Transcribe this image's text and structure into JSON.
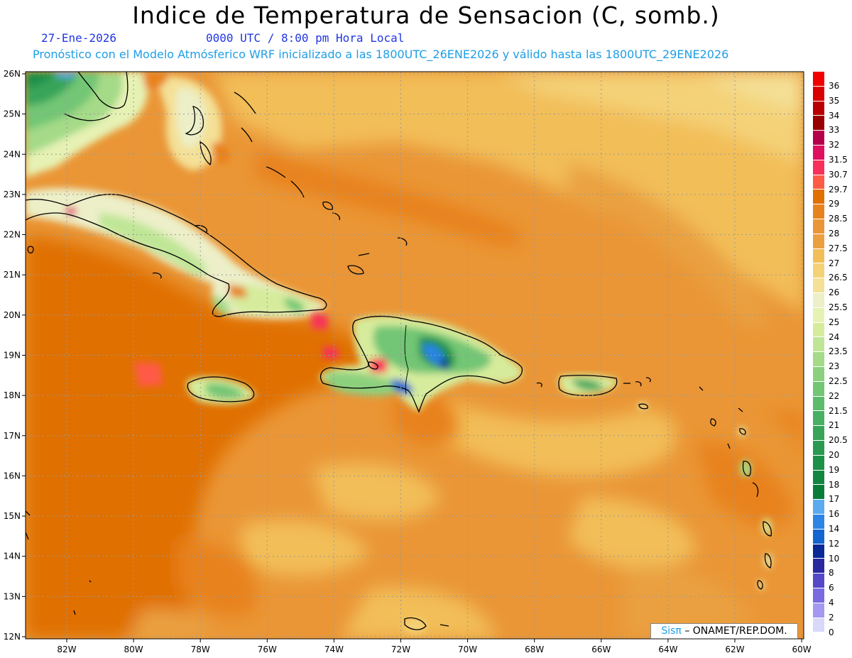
{
  "title": "Indice de Temperatura de Sensacion (C, somb.)",
  "date_line": "27-Ene-2026",
  "time_line": "0000 UTC / 8:00 pm Hora Local",
  "model_line": "Pronóstico con el Modelo Atmósferico WRF inicializado a las 1800UTC_26ENE2026 y válido hasta las  1800UTC_29ENE2026",
  "credit": {
    "sis": "Sisπ",
    "rest": "– ONAMET/REP.DOM."
  },
  "lat_labels": [
    "26N",
    "25N",
    "24N",
    "23N",
    "22N",
    "21N",
    "20N",
    "19N",
    "18N",
    "17N",
    "16N",
    "15N",
    "14N",
    "13N",
    "12N"
  ],
  "lon_labels": [
    "82W",
    "80W",
    "78W",
    "76W",
    "74W",
    "72W",
    "70W",
    "68W",
    "66W",
    "64W",
    "62W",
    "60W"
  ],
  "legend": [
    {
      "label": "36",
      "color": "#f00000"
    },
    {
      "label": "35",
      "color": "#d80000"
    },
    {
      "label": "34",
      "color": "#b80000"
    },
    {
      "label": "33",
      "color": "#960000"
    },
    {
      "label": "32",
      "color": "#b4004a"
    },
    {
      "label": "31.5",
      "color": "#e01060"
    },
    {
      "label": "30.7",
      "color": "#f8305a"
    },
    {
      "label": "29.7",
      "color": "#ff5a46"
    },
    {
      "label": "29",
      "color": "#e07000"
    },
    {
      "label": "28.5",
      "color": "#e8821e"
    },
    {
      "label": "28",
      "color": "#ea9636"
    },
    {
      "label": "27.5",
      "color": "#eaa040"
    },
    {
      "label": "27",
      "color": "#f2be58"
    },
    {
      "label": "26.5",
      "color": "#f4d278"
    },
    {
      "label": "26",
      "color": "#f4e096"
    },
    {
      "label": "25.5",
      "color": "#ecefc8"
    },
    {
      "label": "25",
      "color": "#e6f2b4"
    },
    {
      "label": "24",
      "color": "#d6ec9c"
    },
    {
      "label": "23.5",
      "color": "#bfe696"
    },
    {
      "label": "23",
      "color": "#a4da88"
    },
    {
      "label": "22.5",
      "color": "#8cd07e"
    },
    {
      "label": "22",
      "color": "#72c674"
    },
    {
      "label": "21.5",
      "color": "#5cbc6c"
    },
    {
      "label": "21",
      "color": "#48b062"
    },
    {
      "label": "20.5",
      "color": "#38a45a"
    },
    {
      "label": "20",
      "color": "#2a9a52"
    },
    {
      "label": "19",
      "color": "#1e9048"
    },
    {
      "label": "18",
      "color": "#128640"
    },
    {
      "label": "17",
      "color": "#0a7c3a"
    },
    {
      "label": "16",
      "color": "#5aaaf0"
    },
    {
      "label": "14",
      "color": "#2c84e6"
    },
    {
      "label": "12",
      "color": "#1464d2"
    },
    {
      "label": "10",
      "color": "#0a2896"
    },
    {
      "label": "8",
      "color": "#2c28a0"
    },
    {
      "label": "6",
      "color": "#5448c8"
    },
    {
      "label": "4",
      "color": "#7a6ae0"
    },
    {
      "label": "2",
      "color": "#a498f0"
    },
    {
      "label": "0",
      "color": "#d8d8fa"
    }
  ]
}
